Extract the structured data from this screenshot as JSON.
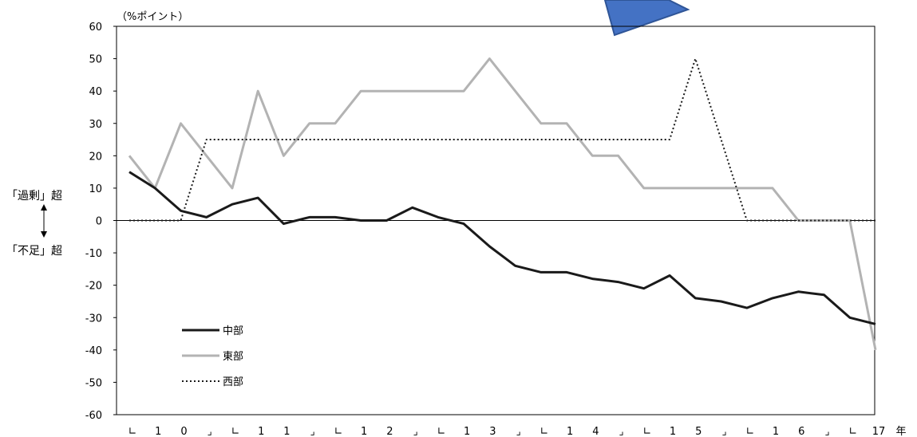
{
  "chart_data": {
    "type": "line",
    "unit_label": "（%ポイント）",
    "xunit": "年",
    "annotations": {
      "upper": "「過剰」超",
      "lower": "「不足」超"
    },
    "ylim": [
      -60,
      60
    ],
    "yticks": [
      "60",
      "50",
      "40",
      "30",
      "20",
      "10",
      "0",
      "-10",
      "-20",
      "-30",
      "-40",
      "-50",
      "-60"
    ],
    "xtick_labels": [
      "∟",
      "1",
      "0",
      "⌟",
      "∟",
      "1",
      "1",
      "⌟",
      "∟",
      "1",
      "2",
      "⌟",
      "∟",
      "1",
      "3",
      "⌟",
      "∟",
      "1",
      "4",
      "⌟",
      "∟",
      "1",
      "5",
      "⌟",
      "∟",
      "1",
      "6",
      "⌟",
      "∟",
      "17"
    ],
    "grid": false,
    "legend_position": "lower-left",
    "series": [
      {
        "name": "中部",
        "color": "#1a1a1a",
        "style": "solid",
        "values": [
          15,
          10,
          3,
          1,
          5,
          7,
          -1,
          1,
          1,
          0,
          0,
          4,
          1,
          -1,
          -8,
          -14,
          -16,
          -16,
          -18,
          -19,
          -21,
          -17,
          -24,
          -25,
          -27,
          -24,
          -22,
          -23,
          -30,
          -32
        ]
      },
      {
        "name": "東部",
        "color": "#b3b3b3",
        "style": "solid",
        "values": [
          20,
          10,
          30,
          20,
          10,
          40,
          20,
          30,
          30,
          40,
          40,
          40,
          40,
          40,
          50,
          40,
          30,
          30,
          20,
          20,
          10,
          10,
          10,
          10,
          10,
          10,
          0,
          0,
          0,
          -40
        ]
      },
      {
        "name": "西部",
        "color": "#1a1a1a",
        "style": "dotted",
        "values": [
          0,
          0,
          0,
          25,
          25,
          25,
          25,
          25,
          25,
          25,
          25,
          25,
          25,
          25,
          25,
          25,
          25,
          25,
          25,
          25,
          25,
          25,
          50,
          25,
          0,
          0,
          0,
          0,
          0,
          0
        ]
      }
    ]
  }
}
